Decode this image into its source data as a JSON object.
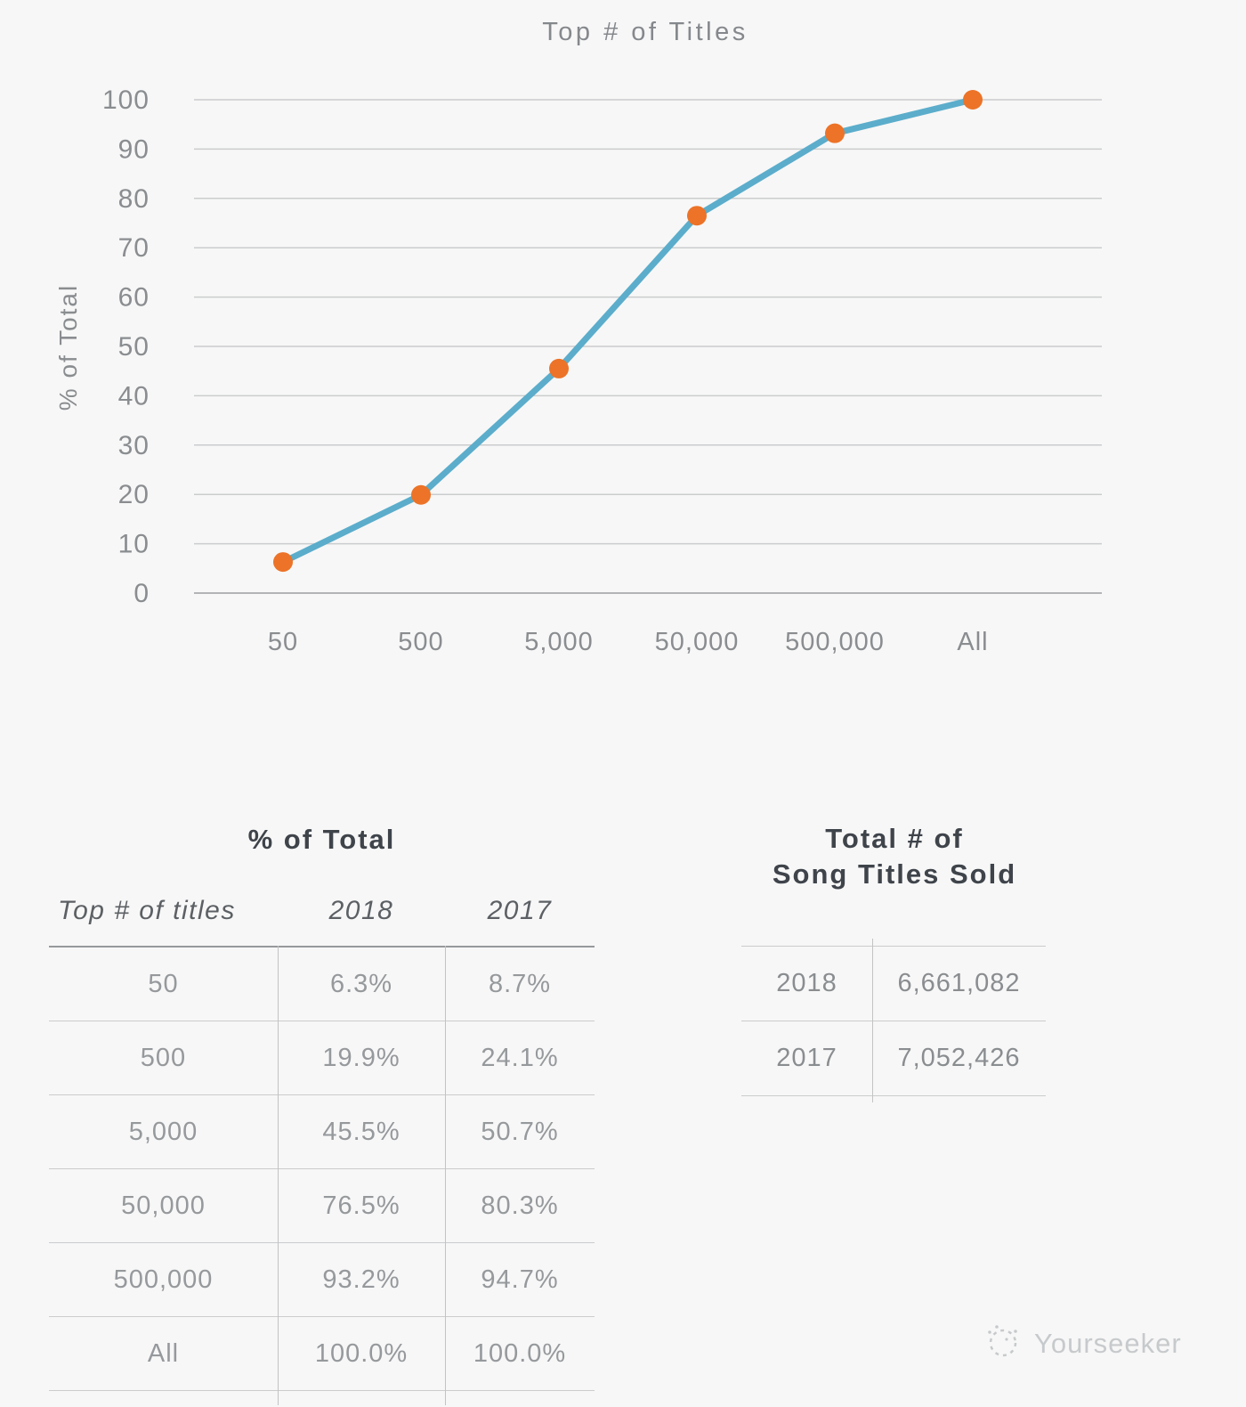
{
  "chart_data": {
    "type": "line",
    "title": "Top # of Titles",
    "ylabel": "% of Total",
    "categories": [
      "50",
      "500",
      "5,000",
      "50,000",
      "500,000",
      "All"
    ],
    "series": [
      {
        "name": "2018",
        "values": [
          6.3,
          19.9,
          45.5,
          76.5,
          93.2,
          100.0
        ]
      }
    ],
    "ylim": [
      0,
      100
    ],
    "yticks": [
      0,
      10,
      20,
      30,
      40,
      50,
      60,
      70,
      80,
      90,
      100
    ],
    "grid": true,
    "legend": "none",
    "line_color": "#5badcb",
    "marker_color": "#ec7328"
  },
  "percent_table": {
    "title": "% of Total",
    "columns": {
      "c1": "Top # of titles",
      "c2": "2018",
      "c3": "2017"
    },
    "rows": [
      {
        "label": "50",
        "y2018": "6.3%",
        "y2017": "8.7%"
      },
      {
        "label": "500",
        "y2018": "19.9%",
        "y2017": "24.1%"
      },
      {
        "label": "5,000",
        "y2018": "45.5%",
        "y2017": "50.7%"
      },
      {
        "label": "50,000",
        "y2018": "76.5%",
        "y2017": "80.3%"
      },
      {
        "label": "500,000",
        "y2018": "93.2%",
        "y2017": "94.7%"
      },
      {
        "label": "All",
        "y2018": "100.0%",
        "y2017": "100.0%"
      }
    ]
  },
  "totals_table": {
    "title_line1": "Total # of",
    "title_line2": "Song Titles Sold",
    "rows": [
      {
        "label": "2018",
        "value": "6,661,082"
      },
      {
        "label": "2017",
        "value": "7,052,426"
      }
    ]
  },
  "footer": {
    "brand": "Yourseeker"
  }
}
